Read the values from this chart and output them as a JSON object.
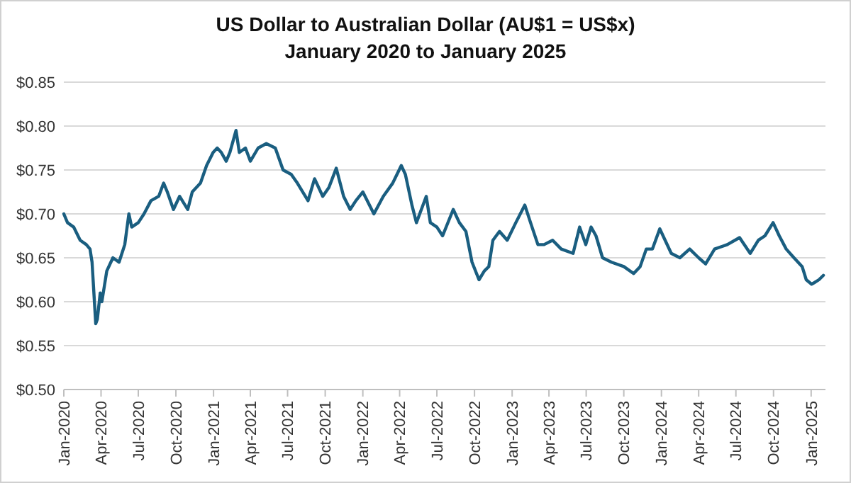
{
  "chart_data": {
    "type": "line",
    "title": "US Dollar to Australian Dollar (AU$1 = US$x)",
    "subtitle": "January 2020 to January 2025",
    "xlim": [
      "2020-01-01",
      "2025-02-05"
    ],
    "xticks": [
      {
        "value": "2020-01-01",
        "label": "Jan-2020"
      },
      {
        "value": "2020-04-01",
        "label": "Apr-2020"
      },
      {
        "value": "2020-07-01",
        "label": "Jul-2020"
      },
      {
        "value": "2020-10-01",
        "label": "Oct-2020"
      },
      {
        "value": "2021-01-01",
        "label": "Jan-2021"
      },
      {
        "value": "2021-04-01",
        "label": "Apr-2021"
      },
      {
        "value": "2021-07-01",
        "label": "Jul-2021"
      },
      {
        "value": "2021-10-01",
        "label": "Oct-2021"
      },
      {
        "value": "2022-01-01",
        "label": "Jan-2022"
      },
      {
        "value": "2022-04-01",
        "label": "Apr-2022"
      },
      {
        "value": "2022-07-01",
        "label": "Jul-2022"
      },
      {
        "value": "2022-10-01",
        "label": "Oct-2022"
      },
      {
        "value": "2023-01-01",
        "label": "Jan-2023"
      },
      {
        "value": "2023-04-01",
        "label": "Apr-2023"
      },
      {
        "value": "2023-07-01",
        "label": "Jul-2023"
      },
      {
        "value": "2023-10-01",
        "label": "Oct-2023"
      },
      {
        "value": "2024-01-01",
        "label": "Jan-2024"
      },
      {
        "value": "2024-04-01",
        "label": "Apr-2024"
      },
      {
        "value": "2024-07-01",
        "label": "Jul-2024"
      },
      {
        "value": "2024-10-01",
        "label": "Oct-2024"
      },
      {
        "value": "2025-01-01",
        "label": "Jan-2025"
      }
    ],
    "ylim": [
      0.5,
      0.85
    ],
    "yticks": [
      {
        "value": 0.5,
        "label": "$0.50"
      },
      {
        "value": 0.55,
        "label": "$0.55"
      },
      {
        "value": 0.6,
        "label": "$0.60"
      },
      {
        "value": 0.65,
        "label": "$0.65"
      },
      {
        "value": 0.7,
        "label": "$0.70"
      },
      {
        "value": 0.75,
        "label": "$0.75"
      },
      {
        "value": 0.8,
        "label": "$0.80"
      },
      {
        "value": 0.85,
        "label": "$0.85"
      }
    ],
    "grid": "y",
    "marker": "none",
    "line_style": "solid",
    "series": [
      {
        "color": "#1a5e80",
        "x": [
          "2020-01-01",
          "2020-01-10",
          "2020-01-25",
          "2020-02-10",
          "2020-02-25",
          "2020-03-05",
          "2020-03-10",
          "2020-03-19",
          "2020-03-23",
          "2020-03-30",
          "2020-04-03",
          "2020-04-15",
          "2020-04-30",
          "2020-05-15",
          "2020-05-29",
          "2020-06-08",
          "2020-06-15",
          "2020-07-01",
          "2020-07-15",
          "2020-08-01",
          "2020-08-20",
          "2020-09-01",
          "2020-09-10",
          "2020-09-25",
          "2020-10-10",
          "2020-10-30",
          "2020-11-10",
          "2020-11-30",
          "2020-12-15",
          "2020-12-31",
          "2021-01-10",
          "2021-01-20",
          "2021-02-01",
          "2021-02-10",
          "2021-02-25",
          "2021-03-05",
          "2021-03-20",
          "2021-04-01",
          "2021-04-20",
          "2021-05-10",
          "2021-06-01",
          "2021-06-20",
          "2021-07-10",
          "2021-07-25",
          "2021-08-20",
          "2021-09-05",
          "2021-09-25",
          "2021-10-10",
          "2021-10-28",
          "2021-11-15",
          "2021-12-01",
          "2021-12-15",
          "2022-01-01",
          "2022-01-28",
          "2022-02-20",
          "2022-03-15",
          "2022-04-05",
          "2022-04-15",
          "2022-05-01",
          "2022-05-12",
          "2022-06-05",
          "2022-06-15",
          "2022-07-01",
          "2022-07-15",
          "2022-08-10",
          "2022-08-25",
          "2022-09-10",
          "2022-09-25",
          "2022-10-12",
          "2022-10-25",
          "2022-11-05",
          "2022-11-15",
          "2022-12-01",
          "2022-12-20",
          "2023-01-10",
          "2023-02-01",
          "2023-02-15",
          "2023-03-05",
          "2023-03-20",
          "2023-04-10",
          "2023-05-01",
          "2023-05-30",
          "2023-06-15",
          "2023-06-30",
          "2023-07-13",
          "2023-07-25",
          "2023-08-10",
          "2023-09-01",
          "2023-10-01",
          "2023-10-25",
          "2023-11-10",
          "2023-11-25",
          "2023-12-10",
          "2023-12-28",
          "2024-01-10",
          "2024-01-25",
          "2024-02-15",
          "2024-03-10",
          "2024-04-01",
          "2024-04-18",
          "2024-05-10",
          "2024-06-10",
          "2024-07-10",
          "2024-08-05",
          "2024-08-25",
          "2024-09-10",
          "2024-09-30",
          "2024-10-15",
          "2024-11-01",
          "2024-11-20",
          "2024-12-10",
          "2024-12-20",
          "2025-01-02",
          "2025-01-10",
          "2025-01-20",
          "2025-01-31"
        ],
        "values": [
          0.7,
          0.69,
          0.685,
          0.67,
          0.665,
          0.66,
          0.645,
          0.575,
          0.58,
          0.61,
          0.6,
          0.635,
          0.65,
          0.645,
          0.665,
          0.7,
          0.685,
          0.69,
          0.7,
          0.715,
          0.72,
          0.735,
          0.725,
          0.705,
          0.72,
          0.705,
          0.725,
          0.735,
          0.755,
          0.77,
          0.775,
          0.77,
          0.76,
          0.77,
          0.795,
          0.77,
          0.775,
          0.76,
          0.775,
          0.78,
          0.775,
          0.75,
          0.745,
          0.735,
          0.715,
          0.74,
          0.72,
          0.73,
          0.752,
          0.72,
          0.705,
          0.715,
          0.725,
          0.7,
          0.72,
          0.735,
          0.755,
          0.745,
          0.71,
          0.69,
          0.72,
          0.69,
          0.685,
          0.675,
          0.705,
          0.69,
          0.68,
          0.645,
          0.625,
          0.635,
          0.64,
          0.67,
          0.68,
          0.67,
          0.69,
          0.71,
          0.69,
          0.665,
          0.665,
          0.67,
          0.66,
          0.655,
          0.685,
          0.665,
          0.685,
          0.675,
          0.65,
          0.645,
          0.64,
          0.632,
          0.64,
          0.66,
          0.66,
          0.683,
          0.67,
          0.655,
          0.65,
          0.66,
          0.65,
          0.643,
          0.66,
          0.665,
          0.673,
          0.655,
          0.67,
          0.675,
          0.69,
          0.675,
          0.66,
          0.65,
          0.64,
          0.625,
          0.62,
          0.622,
          0.625,
          0.63
        ]
      }
    ]
  }
}
